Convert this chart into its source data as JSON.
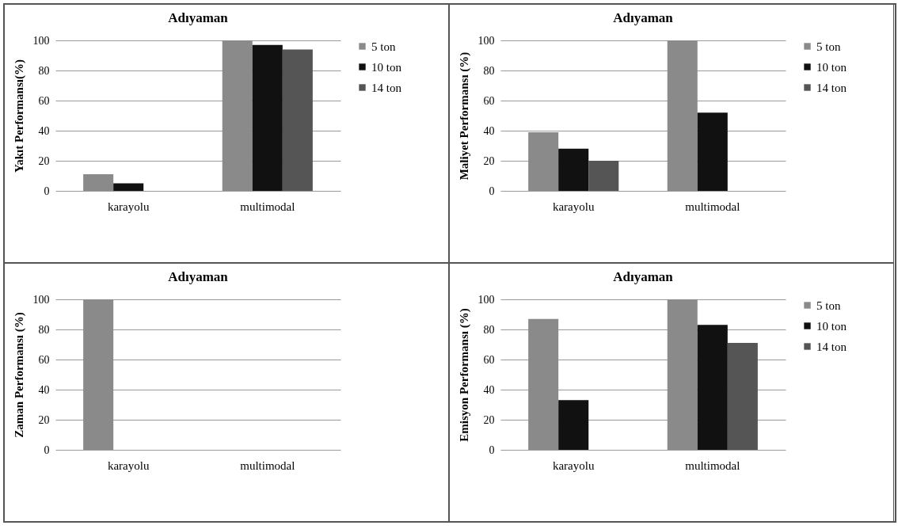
{
  "chart_data": [
    {
      "type": "bar",
      "title": "Adıyaman",
      "ylabel": "Yakıt Performansı(%)",
      "categories": [
        "karayolu",
        "multimodal"
      ],
      "ylim": [
        0,
        100
      ],
      "yticks": [
        0,
        20,
        40,
        60,
        80,
        100
      ],
      "grid": "y",
      "legend": "right",
      "series": [
        {
          "name": "5 ton",
          "color": "#8a8a8a",
          "values": [
            11,
            100
          ]
        },
        {
          "name": "10 ton",
          "color": "#111111",
          "values": [
            5,
            97
          ]
        },
        {
          "name": "14 ton",
          "color": "#555555",
          "values": [
            0,
            94
          ]
        }
      ]
    },
    {
      "type": "bar",
      "title": "Adıyaman",
      "ylabel": "Maliyet Performansı (%)",
      "categories": [
        "karayolu",
        "multimodal"
      ],
      "ylim": [
        0,
        100
      ],
      "yticks": [
        0,
        20,
        40,
        60,
        80,
        100
      ],
      "grid": "y",
      "legend": "right",
      "series": [
        {
          "name": "5 ton",
          "color": "#8a8a8a",
          "values": [
            39,
            100
          ]
        },
        {
          "name": "10 ton",
          "color": "#111111",
          "values": [
            28,
            52
          ]
        },
        {
          "name": "14 ton",
          "color": "#555555",
          "values": [
            20,
            0
          ]
        }
      ]
    },
    {
      "type": "bar",
      "title": "Adıyaman",
      "ylabel": "Zaman Performansı (%)",
      "categories": [
        "karayolu",
        "multimodal"
      ],
      "ylim": [
        0,
        100
      ],
      "yticks": [
        0,
        20,
        40,
        60,
        80,
        100
      ],
      "grid": "y",
      "series": [
        {
          "color": "#8a8a8a",
          "values": [
            100,
            0
          ]
        },
        {
          "color": "#111111",
          "values": [
            0,
            0
          ]
        },
        {
          "color": "#555555",
          "values": [
            0,
            0
          ]
        }
      ]
    },
    {
      "type": "bar",
      "title": "Adıyaman",
      "ylabel": "Emisyon Performansı (%)",
      "categories": [
        "karayolu",
        "multimodal"
      ],
      "ylim": [
        0,
        100
      ],
      "yticks": [
        0,
        20,
        40,
        60,
        80,
        100
      ],
      "grid": "y",
      "legend": "right",
      "series": [
        {
          "name": "5 ton",
          "color": "#8a8a8a",
          "values": [
            87,
            100
          ]
        },
        {
          "name": "10 ton",
          "color": "#111111",
          "values": [
            33,
            83
          ]
        },
        {
          "name": "14 ton",
          "color": "#555555",
          "values": [
            0,
            71
          ]
        }
      ]
    }
  ]
}
